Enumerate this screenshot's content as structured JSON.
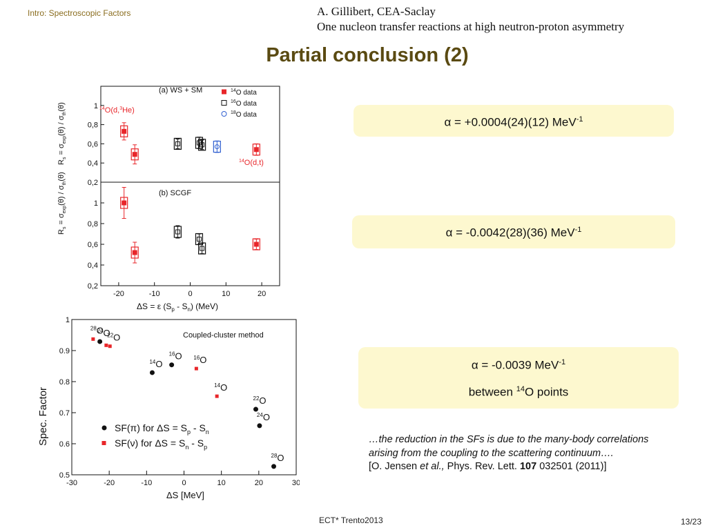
{
  "header": {
    "section": "Intro: Spectroscopic Factors",
    "author_line": "A. Gillibert, CEA-Saclay",
    "talk_title": "One nucleon transfer reactions at high neutron-proton asymmetry"
  },
  "slide_title": "Partial conclusion (2)",
  "results": {
    "alpha_a": {
      "sym": "α",
      "text": " = +0.0004(24)(12) MeV",
      "sup": "-1"
    },
    "alpha_b": {
      "sym": "α",
      "text": " = -0.0042(28)(36) MeV",
      "sup": "-1"
    },
    "alpha_c": {
      "sym": "α",
      "text": " = -0.0039 MeV",
      "sup": "-1",
      "line2_a": "between ",
      "line2_sup": "14",
      "line2_b": "O points"
    }
  },
  "quote": {
    "text": "…the reduction in the SFs is due to the many-body correlations arising from the coupling to the scattering continuum….",
    "ref_a": "[O. Jensen ",
    "ref_etal": "et al.,",
    "ref_b": " Phys. Rev. Lett. ",
    "ref_vol": "107",
    "ref_c": " 032501 (2011)]"
  },
  "footer": {
    "event": "ECT* Trento2013",
    "page": "13/23"
  },
  "colors": {
    "red": "#e8262a",
    "blue": "#2f5fd0",
    "black": "#111111",
    "title": "#5a4a12",
    "box": "#fdf8cf"
  },
  "chart_data": [
    {
      "type": "scatter",
      "panel": "(a) WS + SM",
      "ylabel": "R_s = σ_exp(θ) / σ_th(θ)",
      "ylim": [
        0.2,
        1.2
      ],
      "xlim": [
        -25,
        25
      ],
      "yticks": [
        "0,2",
        "0,4",
        "0,6",
        "0,8",
        "1"
      ],
      "legend": [
        "14O data",
        "16O data",
        "18O data"
      ],
      "annotations": [
        "14O(d,3He)",
        "14O(d,t)"
      ],
      "series": [
        {
          "name": "14O data",
          "points": [
            {
              "x": -18.5,
              "y": 0.73,
              "err": 0.09
            },
            {
              "x": -15.5,
              "y": 0.49,
              "err": 0.1
            },
            {
              "x": 18.5,
              "y": 0.54,
              "err": 0.06
            }
          ]
        },
        {
          "name": "16O data",
          "points": [
            {
              "x": -3.5,
              "y": 0.6,
              "err": 0.05
            },
            {
              "x": 2.5,
              "y": 0.61,
              "err": 0.06
            },
            {
              "x": 3.3,
              "y": 0.59,
              "err": 0.05
            }
          ]
        },
        {
          "name": "18O data",
          "points": [
            {
              "x": 7.5,
              "y": 0.57,
              "err": 0.06
            }
          ]
        }
      ]
    },
    {
      "type": "scatter",
      "panel": "(b) SCGF",
      "ylabel": "R_s = σ_exp(θ) / σ_th(θ)",
      "xlabel": "ΔS = ε (S_p - S_n) (MeV)",
      "ylim": [
        0.2,
        1.2
      ],
      "xlim": [
        -25,
        25
      ],
      "xticks": [
        "-20",
        "-10",
        "0",
        "10",
        "20"
      ],
      "yticks": [
        "0,2",
        "0,4",
        "0,6",
        "0,8",
        "1"
      ],
      "series": [
        {
          "name": "14O data",
          "points": [
            {
              "x": -18.5,
              "y": 1.0,
              "err": 0.15
            },
            {
              "x": -15.5,
              "y": 0.52,
              "err": 0.1
            },
            {
              "x": 18.5,
              "y": 0.6,
              "err": 0.05
            }
          ]
        },
        {
          "name": "16O data",
          "points": [
            {
              "x": -3.5,
              "y": 0.72,
              "err": 0.06
            },
            {
              "x": 2.5,
              "y": 0.65,
              "err": 0.05
            },
            {
              "x": 3.3,
              "y": 0.56,
              "err": 0.05
            }
          ]
        }
      ]
    },
    {
      "type": "scatter",
      "title": "Coupled-cluster method",
      "ylabel": "Spec. Factor",
      "xlabel": "ΔS [MeV]",
      "xlim": [
        -30,
        30
      ],
      "ylim": [
        0.5,
        1.0
      ],
      "xticks": [
        "-30",
        "-20",
        "-10",
        "0",
        "10",
        "20",
        "30"
      ],
      "yticks": [
        "0.5",
        "0.6",
        "0.7",
        "0.8",
        "0.9",
        "1"
      ],
      "legend": [
        "SF(π) for ΔS = S_p - S_n",
        "SF(ν) for ΔS = S_n - S_p"
      ],
      "series": [
        {
          "name": "SF(π) for ΔS = S_p - S_n",
          "points": [
            {
              "x": -22.5,
              "y": 0.929,
              "label": "24O"
            },
            {
              "x": -8.5,
              "y": 0.829,
              "label": "14O"
            },
            {
              "x": -3.3,
              "y": 0.854,
              "label": "16O"
            },
            {
              "x": 19.2,
              "y": 0.711,
              "label": "22O"
            },
            {
              "x": 20.2,
              "y": 0.658,
              "label": "24O"
            },
            {
              "x": 24.0,
              "y": 0.527,
              "label": "28O"
            }
          ]
        },
        {
          "name": "SF(ν) for ΔS = S_n - S_p",
          "points": [
            {
              "x": -24.3,
              "y": 0.937,
              "label": "28O"
            },
            {
              "x": -20.8,
              "y": 0.917,
              "label": ""
            },
            {
              "x": -19.8,
              "y": 0.914,
              "label": "22O"
            },
            {
              "x": 3.3,
              "y": 0.842,
              "label": "16O"
            },
            {
              "x": 8.8,
              "y": 0.753,
              "label": "14O"
            }
          ]
        }
      ]
    }
  ]
}
